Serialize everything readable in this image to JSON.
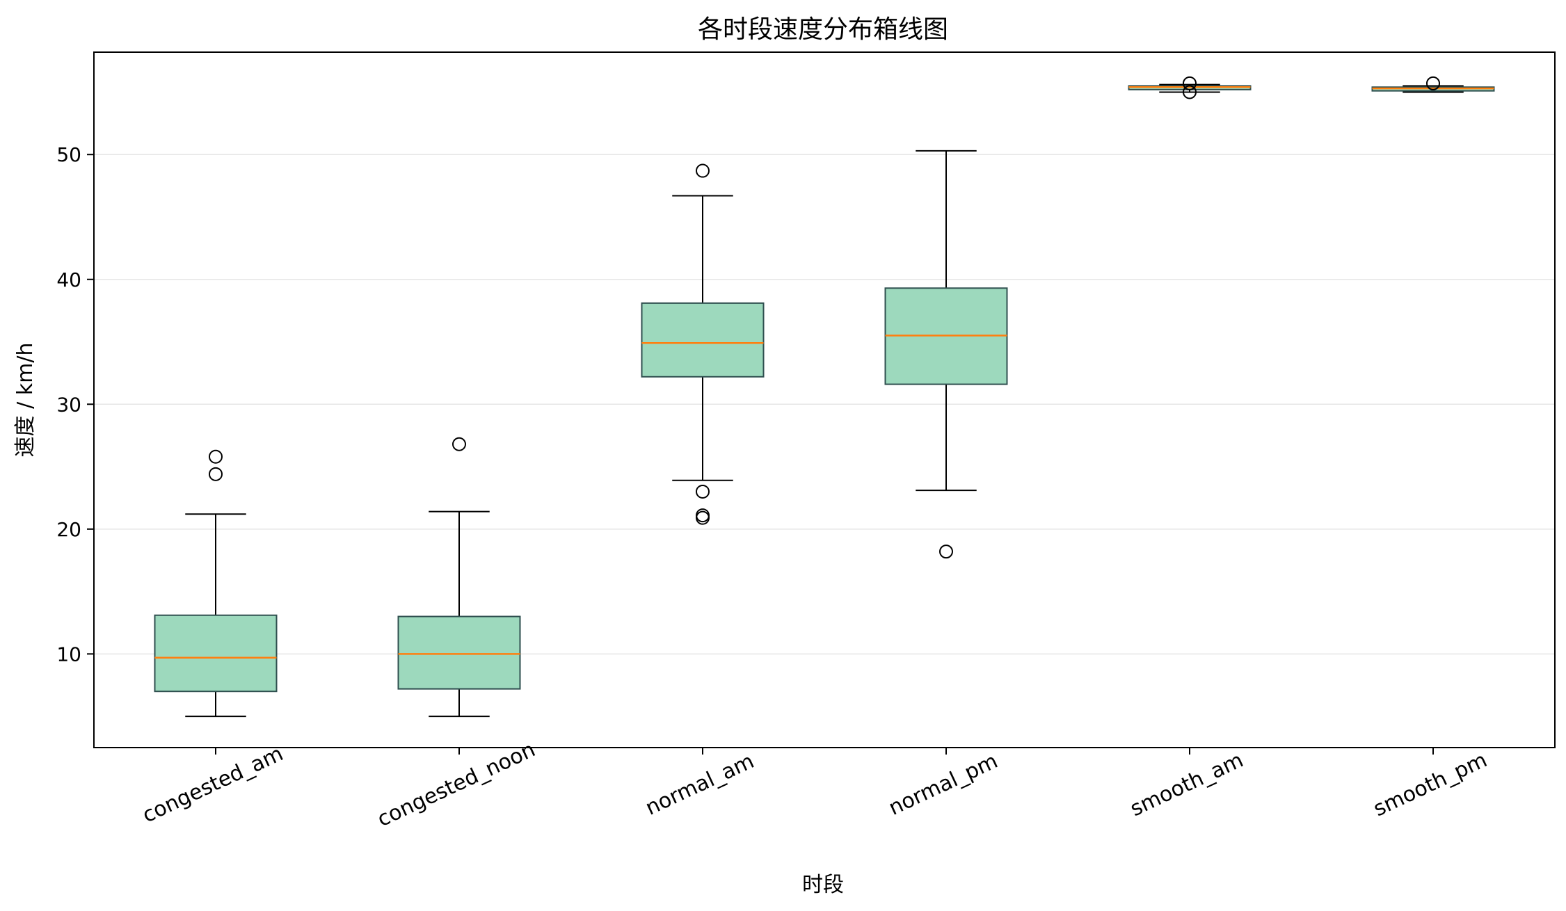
{
  "chart_data": {
    "type": "boxplot",
    "title": "各时段速度分布箱线图",
    "xlabel": "时段",
    "ylabel": "速度 / km/h",
    "ylim": [
      2.5,
      58.2
    ],
    "yticks": [
      10,
      20,
      30,
      40,
      50
    ],
    "grid": "horizontal",
    "box_color": "#9dd9bd",
    "box_edge_color": "#2f4f4f",
    "median_color": "#ff7f0e",
    "categories": [
      "congested_am",
      "congested_noon",
      "normal_am",
      "normal_pm",
      "smooth_am",
      "smooth_pm"
    ],
    "boxes": [
      {
        "whisker_low": 5.0,
        "q1": 7.0,
        "median": 9.7,
        "q3": 13.1,
        "whisker_high": 21.2,
        "outliers": [
          24.4,
          25.8
        ]
      },
      {
        "whisker_low": 5.0,
        "q1": 7.2,
        "median": 10.0,
        "q3": 13.0,
        "whisker_high": 21.4,
        "outliers": [
          26.8
        ]
      },
      {
        "whisker_low": 23.9,
        "q1": 32.2,
        "median": 34.9,
        "q3": 38.1,
        "whisker_high": 46.7,
        "outliers": [
          20.9,
          21.1,
          23.0,
          48.7
        ]
      },
      {
        "whisker_low": 23.1,
        "q1": 31.6,
        "median": 35.5,
        "q3": 39.3,
        "whisker_high": 50.3,
        "outliers": [
          18.2
        ]
      },
      {
        "whisker_low": 55.0,
        "q1": 55.2,
        "median": 55.4,
        "q3": 55.5,
        "whisker_high": 55.6,
        "outliers": [
          55.0,
          55.7
        ]
      },
      {
        "whisker_low": 55.0,
        "q1": 55.1,
        "median": 55.3,
        "q3": 55.4,
        "whisker_high": 55.5,
        "outliers": [
          55.7
        ]
      }
    ]
  }
}
